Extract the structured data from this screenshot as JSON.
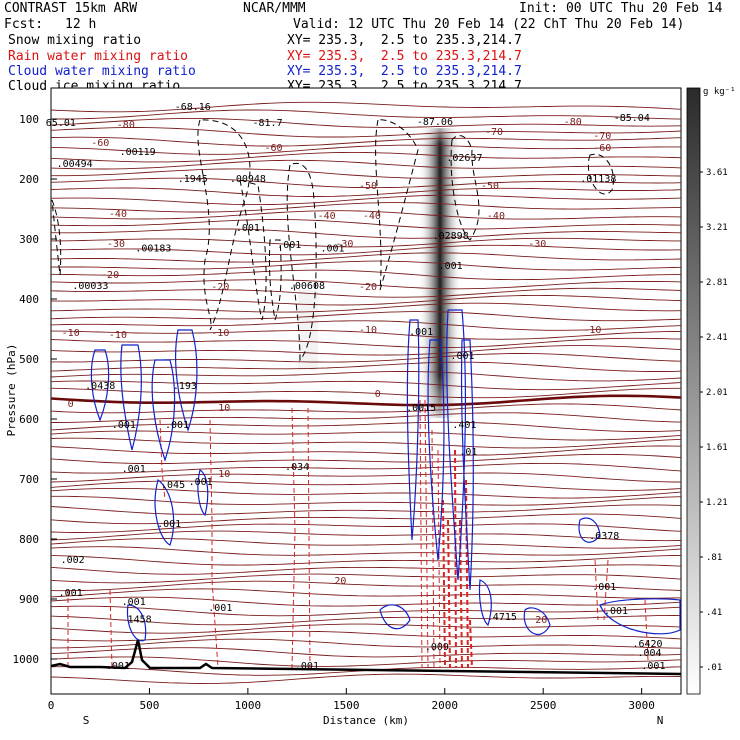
{
  "header": {
    "title": "CONTRAST 15km ARW",
    "center": "NCAR/MMM",
    "init": "Init: 00 UTC Thu 20 Feb 14",
    "fcst_label": "Fcst:",
    "fcst_value": "12 h",
    "valid": "Valid: 12 UTC Thu 20 Feb 14 (22 ChT Thu 20 Feb 14)"
  },
  "legend": [
    {
      "name": "Snow mixing ratio",
      "color": "#000000",
      "xy": "XY= 235.3,  2.5 to 235.3,214.7"
    },
    {
      "name": "Rain water mixing ratio",
      "color": "#dd1111",
      "xy": "XY= 235.3,  2.5 to 235.3,214.7"
    },
    {
      "name": "Cloud water mixing ratio",
      "color": "#1122cc",
      "xy": "XY= 235.3,  2.5 to 235.3,214.7"
    },
    {
      "name": "Cloud ice mixing ratio",
      "color": "#000000",
      "xy": "XY= 235.3,  2.5 to 235.3,214.7"
    }
  ],
  "chart_data": {
    "type": "cross-section",
    "xlabel": "Distance (km)",
    "ylabel": "Pressure (hPa)",
    "xlim": [
      0,
      3200
    ],
    "ylim": [
      1050,
      70
    ],
    "x_ticks": [
      0,
      500,
      1000,
      1500,
      2000,
      2500,
      3000
    ],
    "y_ticks": [
      100,
      200,
      300,
      400,
      500,
      600,
      700,
      800,
      900,
      1000
    ],
    "x_end_labels": {
      "left": "S",
      "right": "N"
    },
    "colorbar": {
      "unit": "g kg⁻¹",
      "labels": [
        "3.61",
        "3.21",
        "2.81",
        "2.41",
        "2.01",
        "1.61",
        "1.21",
        ".81",
        ".41",
        ".01"
      ]
    },
    "temperature_labels": [
      {
        "text": "-80",
        "x": 380,
        "p": 110
      },
      {
        "text": "-80",
        "x": 2650,
        "p": 105
      },
      {
        "text": "-70",
        "x": 2250,
        "p": 122
      },
      {
        "text": "-70",
        "x": 2800,
        "p": 128
      },
      {
        "text": "-60",
        "x": 250,
        "p": 140
      },
      {
        "text": "-60",
        "x": 1130,
        "p": 148
      },
      {
        "text": "-60",
        "x": 2800,
        "p": 148
      },
      {
        "text": "-50",
        "x": 1610,
        "p": 212
      },
      {
        "text": "-50",
        "x": 2230,
        "p": 212
      },
      {
        "text": "-40",
        "x": 340,
        "p": 258
      },
      {
        "text": "-40",
        "x": 1400,
        "p": 262
      },
      {
        "text": "-40",
        "x": 2260,
        "p": 262
      },
      {
        "text": "-40",
        "x": 1630,
        "p": 262
      },
      {
        "text": "-30",
        "x": 330,
        "p": 308
      },
      {
        "text": "-30",
        "x": 1490,
        "p": 308
      },
      {
        "text": "-30",
        "x": 2470,
        "p": 308
      },
      {
        "text": "-20",
        "x": 300,
        "p": 360
      },
      {
        "text": "-20",
        "x": 860,
        "p": 380
      },
      {
        "text": "-20",
        "x": 1610,
        "p": 380
      },
      {
        "text": "-10",
        "x": 100,
        "p": 457
      },
      {
        "text": "-10",
        "x": 340,
        "p": 460
      },
      {
        "text": "-10",
        "x": 860,
        "p": 457
      },
      {
        "text": "-10",
        "x": 1610,
        "p": 452
      },
      {
        "text": "-10",
        "x": 2750,
        "p": 452
      },
      {
        "text": "0",
        "x": 100,
        "p": 575
      },
      {
        "text": "0",
        "x": 1660,
        "p": 558
      },
      {
        "text": "10",
        "x": 880,
        "p": 582
      },
      {
        "text": "10",
        "x": 880,
        "p": 692
      },
      {
        "text": "20",
        "x": 1470,
        "p": 870
      },
      {
        "text": "20",
        "x": 2490,
        "p": 935
      }
    ],
    "max_min_labels": [
      {
        "text": "-68.16",
        "x": 720,
        "p": 80
      },
      {
        "text": "65.01",
        "x": 50,
        "p": 107
      },
      {
        "text": "-81.7",
        "x": 1100,
        "p": 107
      },
      {
        "text": "-87.06",
        "x": 1950,
        "p": 105
      },
      {
        "text": "-85.04",
        "x": 2950,
        "p": 98
      },
      {
        "text": ".00494",
        "x": 120,
        "p": 175
      },
      {
        "text": ".00119",
        "x": 440,
        "p": 155
      },
      {
        "text": ".1945",
        "x": 720,
        "p": 200
      },
      {
        "text": ".00948",
        "x": 1000,
        "p": 200
      },
      {
        "text": ".001",
        "x": 1000,
        "p": 282
      },
      {
        "text": ".00183",
        "x": 520,
        "p": 316
      },
      {
        "text": ".001",
        "x": 1210,
        "p": 310
      },
      {
        "text": ".001",
        "x": 1430,
        "p": 316
      },
      {
        "text": ".00033",
        "x": 200,
        "p": 378
      },
      {
        "text": ".00608",
        "x": 1300,
        "p": 378
      },
      {
        "text": ".02637",
        "x": 2100,
        "p": 165
      },
      {
        "text": ".02898",
        "x": 2030,
        "p": 295
      },
      {
        "text": ".001",
        "x": 2030,
        "p": 345
      },
      {
        "text": ".01138",
        "x": 2780,
        "p": 200
      },
      {
        "text": ".0438",
        "x": 250,
        "p": 545
      },
      {
        "text": ".001",
        "x": 370,
        "p": 610
      },
      {
        "text": ".001",
        "x": 640,
        "p": 610
      },
      {
        "text": ".193",
        "x": 680,
        "p": 545
      },
      {
        "text": ".001",
        "x": 420,
        "p": 683
      },
      {
        "text": ".045",
        "x": 620,
        "p": 710
      },
      {
        "text": ".001",
        "x": 760,
        "p": 705
      },
      {
        "text": ".001",
        "x": 600,
        "p": 775
      },
      {
        "text": ".034",
        "x": 1250,
        "p": 680
      },
      {
        "text": ".002",
        "x": 110,
        "p": 835
      },
      {
        "text": ".001",
        "x": 100,
        "p": 890
      },
      {
        "text": ".001",
        "x": 420,
        "p": 905
      },
      {
        "text": "1458",
        "x": 450,
        "p": 934
      },
      {
        "text": ".001",
        "x": 860,
        "p": 915
      },
      {
        "text": ".001",
        "x": 1300,
        "p": 1012
      },
      {
        "text": ".001",
        "x": 340,
        "p": 1012
      },
      {
        "text": ".0015",
        "x": 1880,
        "p": 582
      },
      {
        "text": ".001",
        "x": 1880,
        "p": 455
      },
      {
        "text": ".001",
        "x": 2090,
        "p": 495
      },
      {
        "text": ".401",
        "x": 2100,
        "p": 610
      },
      {
        "text": ".01",
        "x": 2120,
        "p": 655
      },
      {
        "text": ".4715",
        "x": 2290,
        "p": 930
      },
      {
        "text": ".009",
        "x": 1960,
        "p": 980
      },
      {
        "text": ".6378",
        "x": 2810,
        "p": 795
      },
      {
        "text": ".001",
        "x": 2810,
        "p": 880
      },
      {
        "text": ".001",
        "x": 2870,
        "p": 920
      },
      {
        "text": ".6420",
        "x": 3030,
        "p": 975
      },
      {
        "text": ".004",
        "x": 3040,
        "p": 990
      },
      {
        "text": ".001",
        "x": 3060,
        "p": 1012
      }
    ]
  }
}
